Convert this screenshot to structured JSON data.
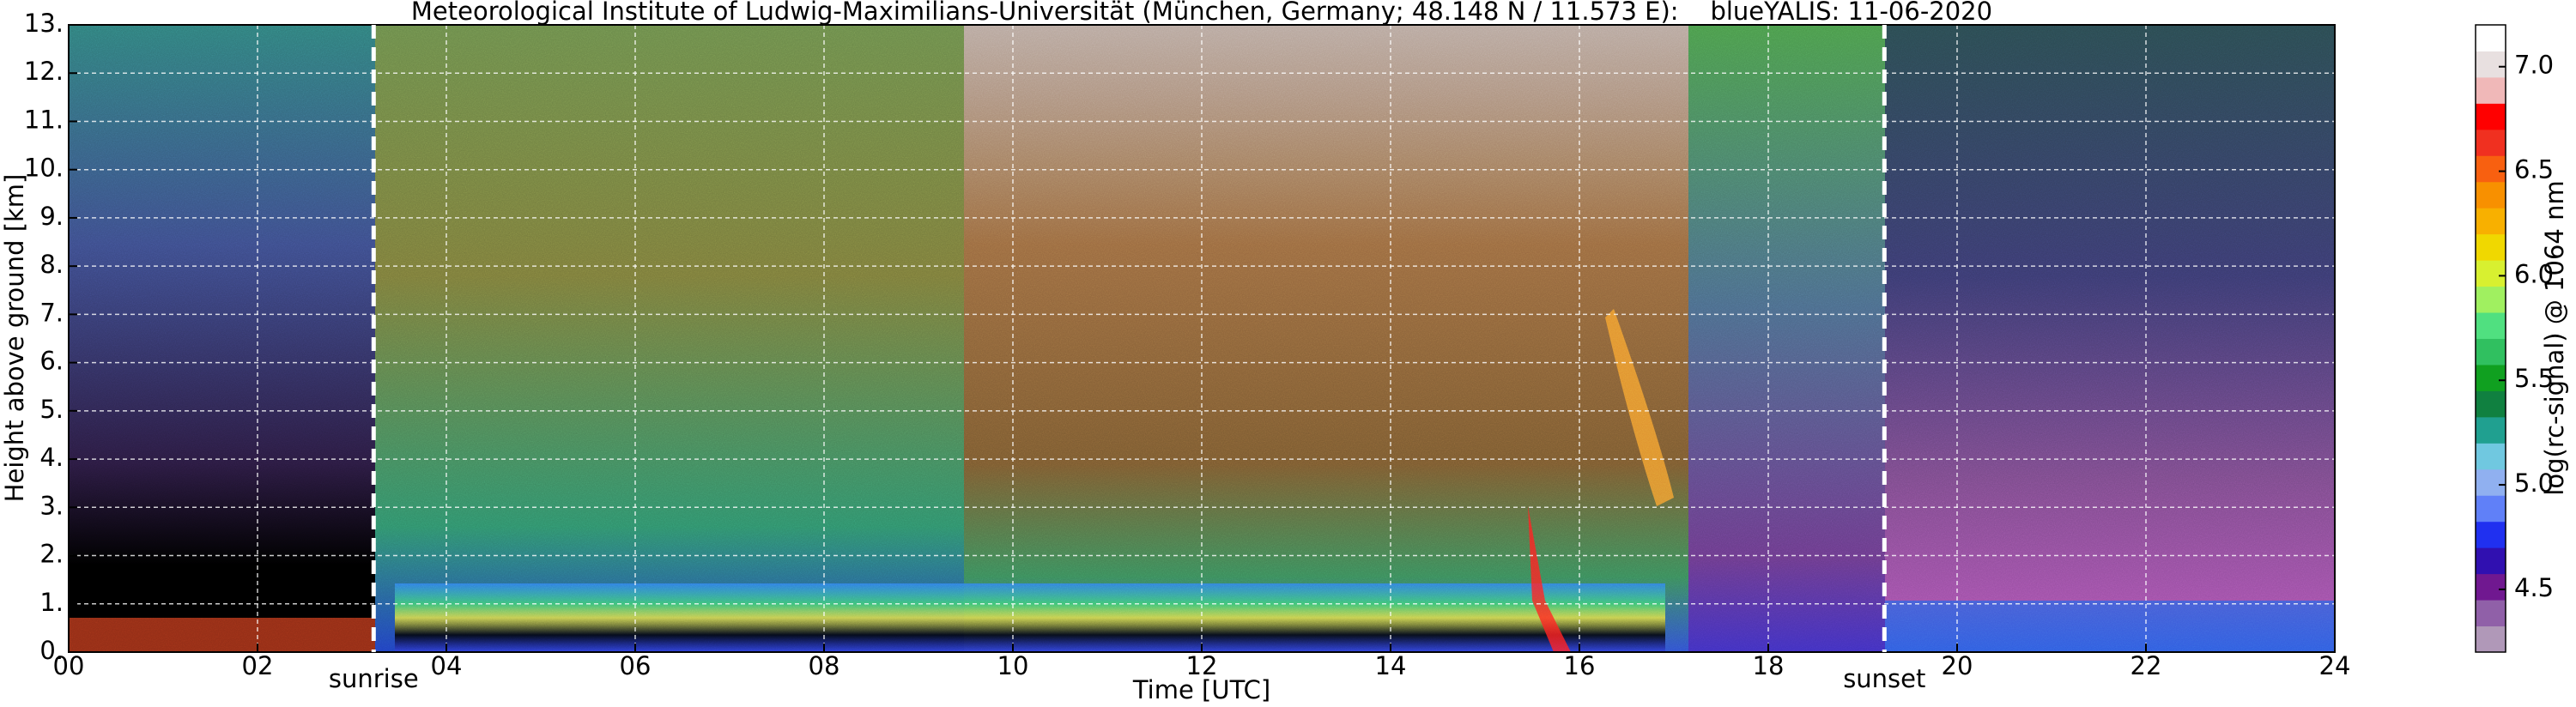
{
  "chart_data": {
    "type": "heatmap",
    "title": "Meteorological Institute of Ludwig-Maximilians-Universität (München, Germany; 48.148 N / 11.573 E):    blueYALIS: 11-06-2020",
    "x_label": "Time [UTC]",
    "y_label": "Height above ground [km]",
    "xlim": [
      0,
      24
    ],
    "xticks": [
      {
        "value": 0,
        "label": "00"
      },
      {
        "value": 2,
        "label": "02"
      },
      {
        "value": 4,
        "label": "04"
      },
      {
        "value": 6,
        "label": "06"
      },
      {
        "value": 8,
        "label": "08"
      },
      10,
      12,
      14,
      16,
      18,
      20,
      22,
      24
    ],
    "ylim": [
      0,
      13
    ],
    "yticks": [
      {
        "value": 0,
        "label": "0."
      },
      {
        "value": 1,
        "label": "1."
      },
      {
        "value": 2,
        "label": "2."
      },
      {
        "value": 3,
        "label": "3."
      },
      {
        "value": 4,
        "label": "4."
      },
      {
        "value": 5,
        "label": "5."
      },
      {
        "value": 6,
        "label": "6."
      },
      {
        "value": 7,
        "label": "7."
      },
      {
        "value": 8,
        "label": "8."
      },
      {
        "value": 9,
        "label": "9."
      },
      {
        "value": 10,
        "label": "10."
      },
      {
        "value": 11,
        "label": "11."
      },
      {
        "value": 12,
        "label": "12."
      },
      {
        "value": 13,
        "label": "13."
      }
    ],
    "grid": true,
    "annotations": [
      {
        "x": 3.23,
        "label": "sunrise"
      },
      {
        "x": 19.23,
        "label": "sunset"
      }
    ],
    "colorbar": {
      "label": "log(rc-signal) @ 1064 nm",
      "lim": [
        4.2,
        7.2
      ],
      "ticks": [
        4.5,
        {
          "value": 5,
          "label": "5.0"
        },
        5.5,
        {
          "value": 6,
          "label": "6.0"
        },
        6.5,
        {
          "value": 7,
          "label": "7.0"
        }
      ],
      "colors": [
        "#b098b8",
        "#9060a8",
        "#701890",
        "#3010b0",
        "#2030f0",
        "#6080f8",
        "#90b0f0",
        "#70c8e0",
        "#20a090",
        "#108040",
        "#10a020",
        "#30c060",
        "#50e080",
        "#a0f060",
        "#d8f030",
        "#f0d800",
        "#f8b000",
        "#f89000",
        "#f86010",
        "#f03020",
        "#ff0000",
        "#f0b8b8",
        "#e8e0e0",
        "#ffffff"
      ]
    }
  }
}
